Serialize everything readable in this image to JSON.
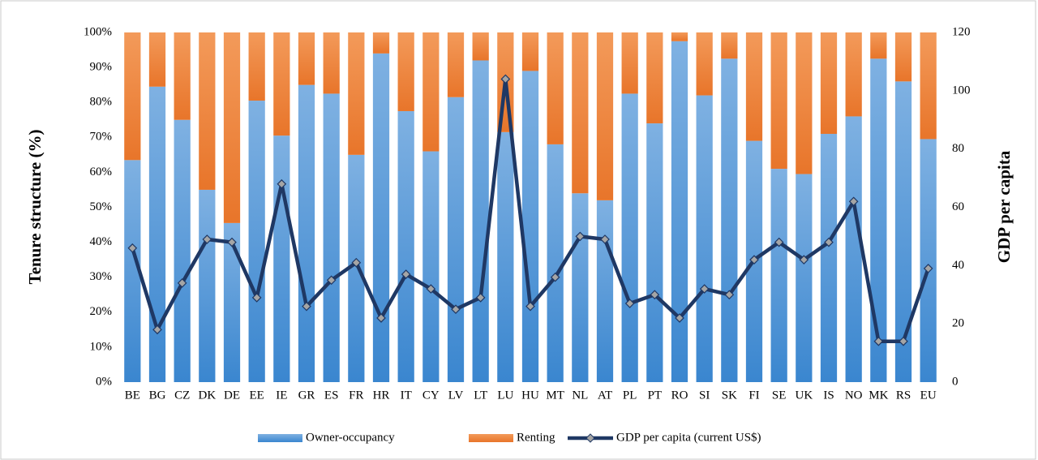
{
  "chart_data": {
    "type": "stacked_bar_line",
    "categories": [
      "BE",
      "BG",
      "CZ",
      "DK",
      "DE",
      "EE",
      "IE",
      "GR",
      "ES",
      "FR",
      "HR",
      "IT",
      "CY",
      "LV",
      "LT",
      "LU",
      "HU",
      "MT",
      "NL",
      "AT",
      "PL",
      "PT",
      "RO",
      "SI",
      "SK",
      "FI",
      "SE",
      "UK",
      "IS",
      "NO",
      "MK",
      "RS",
      "EU"
    ],
    "series": [
      {
        "name": "Owner-occupancy",
        "color": "#5b9bd5",
        "type": "bar",
        "values": [
          63.5,
          84.5,
          75,
          55,
          45.5,
          80.5,
          70.5,
          85,
          82.5,
          65,
          94,
          77.5,
          66,
          81.5,
          92,
          71.5,
          89,
          68,
          54,
          52,
          82.5,
          74,
          97.5,
          82,
          92.5,
          69,
          61,
          59.5,
          71,
          76,
          92.5,
          86,
          69.5
        ]
      },
      {
        "name": "Renting",
        "color": "#ed7d31",
        "type": "bar",
        "values": [
          36.5,
          15.5,
          25,
          45,
          54.5,
          19.5,
          29.5,
          15,
          17.5,
          35,
          6,
          22.5,
          34,
          18.5,
          8,
          28.5,
          11,
          32,
          46,
          48,
          17.5,
          26,
          2.5,
          18,
          7.5,
          31,
          39,
          40.5,
          29,
          24,
          7.5,
          14,
          30.5
        ]
      },
      {
        "name": "GDP per capita (current US$)",
        "color": "#1f3864",
        "type": "line",
        "axis": "y2",
        "values": [
          46,
          18,
          34,
          49,
          48,
          29,
          68,
          26,
          35,
          41,
          22,
          37,
          32,
          25,
          29,
          104,
          26,
          36,
          50,
          49,
          27,
          30,
          22,
          32,
          30,
          42,
          48,
          42,
          48,
          62,
          14,
          14,
          39
        ]
      }
    ],
    "ylabel": "Tenure structure (%)",
    "y2label": "GDP per capita",
    "ylim": [
      0,
      100
    ],
    "yticks": [
      {
        "value": 0,
        "label": "0%"
      },
      {
        "value": 10,
        "label": "10%"
      },
      {
        "value": 20,
        "label": "20%"
      },
      {
        "value": 30,
        "label": "30%"
      },
      {
        "value": 40,
        "label": "40%"
      },
      {
        "value": 50,
        "label": "50%"
      },
      {
        "value": 60,
        "label": "60%"
      },
      {
        "value": 70,
        "label": "70%"
      },
      {
        "value": 80,
        "label": "80%"
      },
      {
        "value": 90,
        "label": "90%"
      },
      {
        "value": 100,
        "label": "100%"
      }
    ],
    "y2lim": [
      0,
      120
    ],
    "y2ticks": [
      0,
      20,
      40,
      60,
      80,
      100,
      120
    ],
    "legend": "bottom"
  }
}
